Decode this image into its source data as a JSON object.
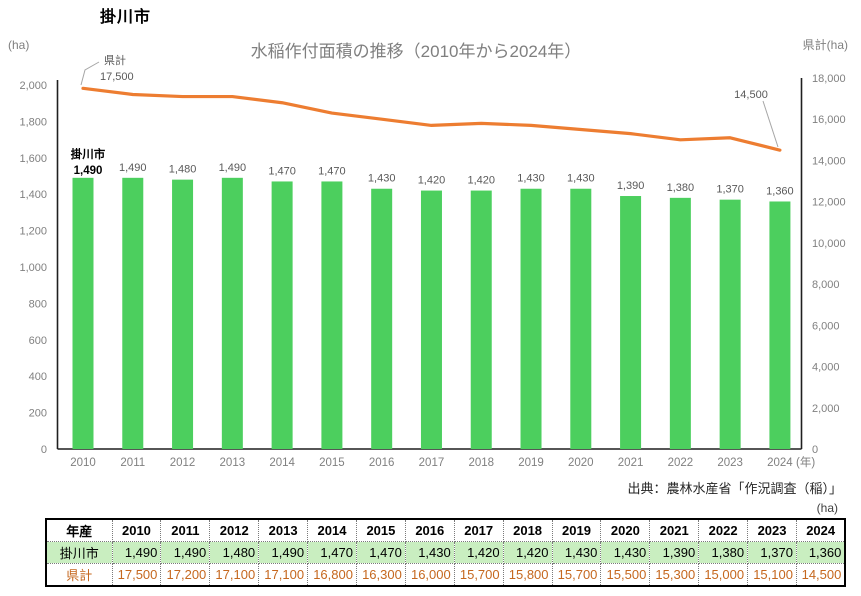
{
  "page": {
    "region_title": "掛川市",
    "source_note": "出典：農林水産省「作況調査（稲）」",
    "table_unit": "(ha)"
  },
  "chart_data": {
    "type": "combo",
    "title": "水稲作付面積の推移（2010年から2024年）",
    "title_color": "#7f7f7f",
    "grid": false,
    "legend_position": "none",
    "categories": [
      2010,
      2011,
      2012,
      2013,
      2014,
      2015,
      2016,
      2017,
      2018,
      2019,
      2020,
      2021,
      2022,
      2023,
      2024
    ],
    "x_unit": "(年)",
    "left_axis": {
      "unit": "(ha)",
      "min": 0,
      "max": 2000,
      "step": 200
    },
    "right_axis": {
      "unit": "県計(ha)",
      "min": 0,
      "max": 18000,
      "step": 2000
    },
    "series": [
      {
        "name": "掛川市",
        "type": "bar",
        "axis": "left",
        "color": "#4ccf5e",
        "values": [
          1490,
          1490,
          1480,
          1490,
          1470,
          1470,
          1430,
          1420,
          1420,
          1430,
          1430,
          1390,
          1380,
          1370,
          1360
        ]
      },
      {
        "name": "県計",
        "type": "line",
        "axis": "right",
        "color": "#ed7d31",
        "values": [
          17500,
          17200,
          17100,
          17100,
          16800,
          16300,
          16000,
          15700,
          15800,
          15700,
          15500,
          15300,
          15000,
          15100,
          14500
        ]
      }
    ],
    "annotations": [
      {
        "id": "line-start",
        "lines": [
          "県計",
          "17,500"
        ]
      },
      {
        "id": "line-end",
        "lines": [
          "14,500"
        ]
      },
      {
        "id": "bar-start",
        "lines": [
          "掛川市",
          "1,490"
        ]
      }
    ],
    "label_color": "#595959",
    "tick_color": "#808080"
  },
  "table": {
    "header_label": "年産",
    "rows": [
      {
        "label": "掛川市",
        "series_index": 0,
        "bg": "#c9eec0",
        "color": "#000000"
      },
      {
        "label": "県計",
        "series_index": 1,
        "bg": "#ffffff",
        "color": "#c5671e"
      }
    ]
  }
}
